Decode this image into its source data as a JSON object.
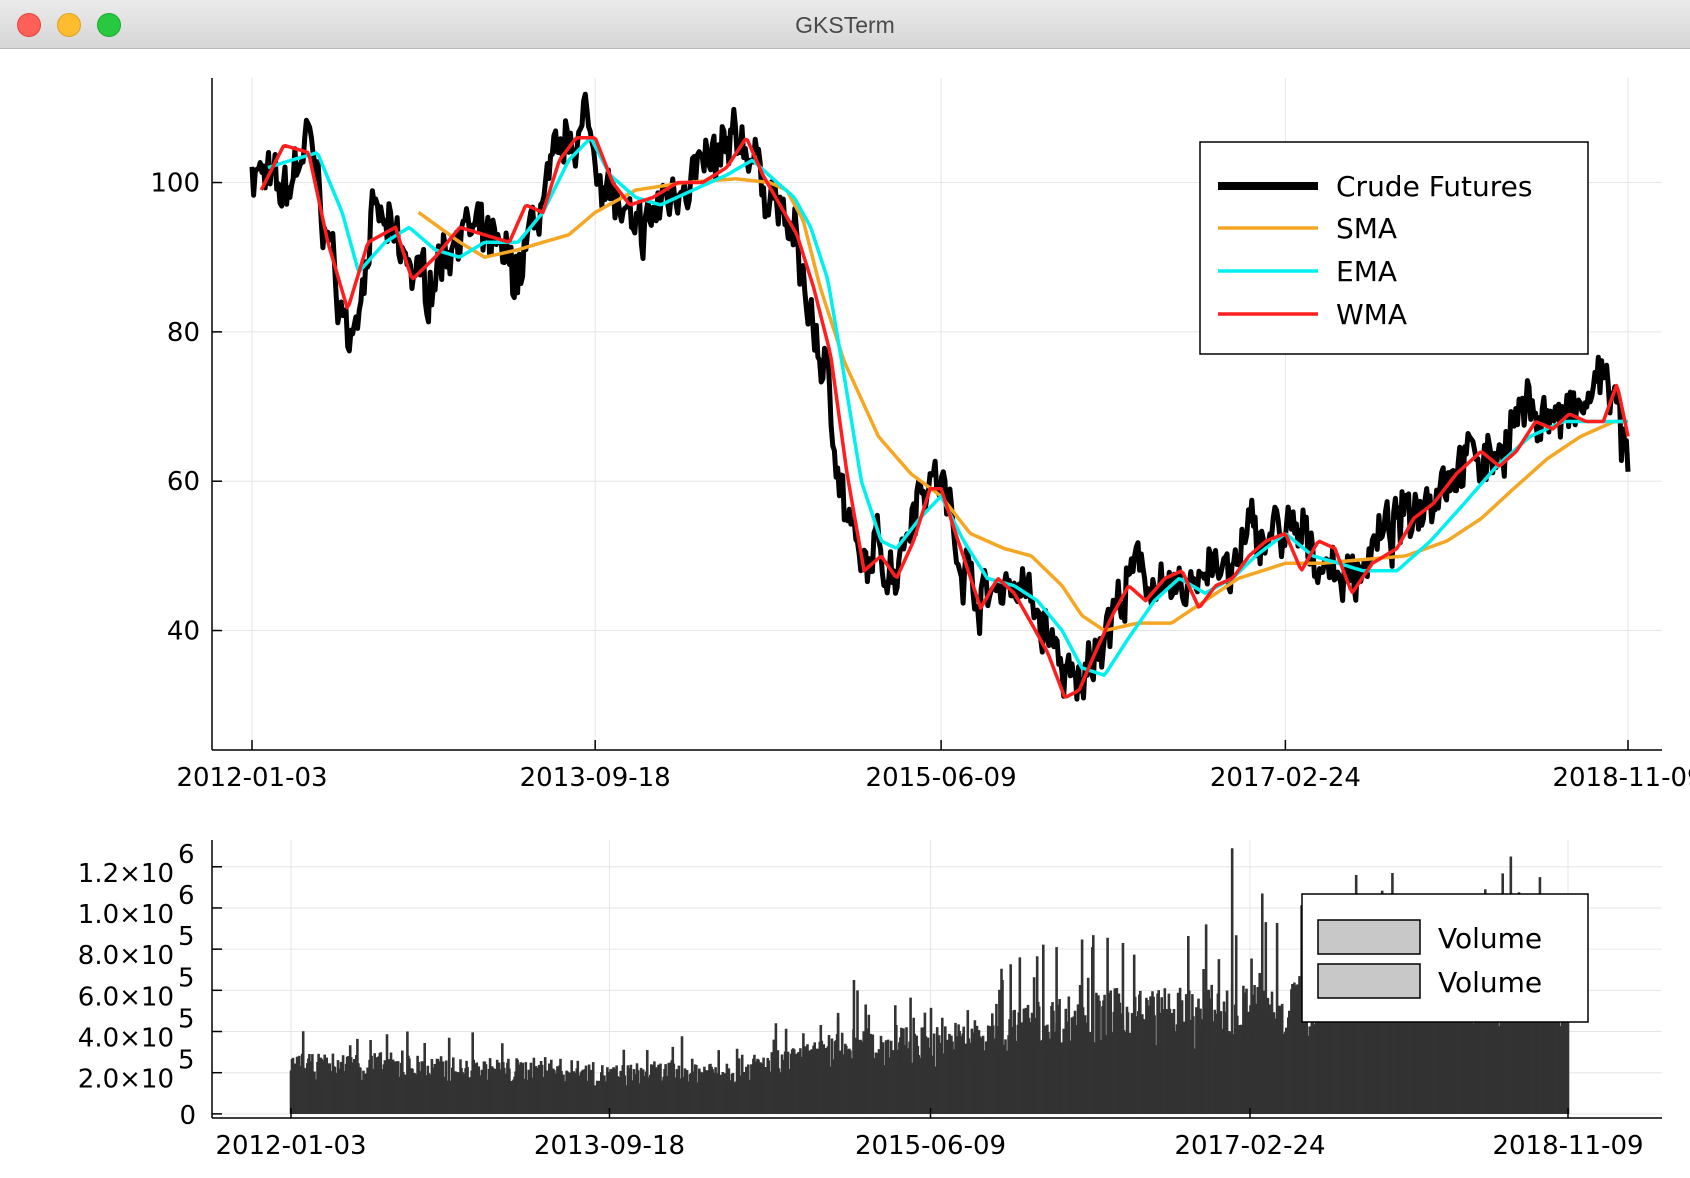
{
  "window": {
    "title": "GKSTerm",
    "controls": {
      "close": "close",
      "minimize": "minimize",
      "zoom": "zoom"
    }
  },
  "colors": {
    "price": "#000000",
    "sma": "#f5a623",
    "ema": "#00f0f0",
    "wma": "#ff1e1e",
    "volume_bar": "#333333",
    "legend_patch": "#c8c8c8",
    "grid": "#e6e6e6"
  },
  "chart_data": [
    {
      "type": "line",
      "grid": true,
      "legend_position": "top-right",
      "x_ticks": [
        "2012-01-03",
        "2013-09-18",
        "2015-06-09",
        "2017-02-24",
        "2018-11-09"
      ],
      "y_ticks": [
        {
          "value": 40,
          "label": "40"
        },
        {
          "value": 60,
          "label": "60"
        },
        {
          "value": 80,
          "label": "80"
        },
        {
          "value": 100,
          "label": "100"
        }
      ],
      "xlim": [
        "2012-01-03",
        "2018-11-09"
      ],
      "ylim": [
        24,
        114
      ],
      "series": [
        {
          "name": "Crude Futures",
          "x": [
            "2012-01-03",
            "2012-03-01",
            "2012-04-15",
            "2012-06-01",
            "2012-06-28",
            "2012-08-15",
            "2012-09-15",
            "2012-11-15",
            "2013-01-10",
            "2013-03-01",
            "2013-05-01",
            "2013-06-15",
            "2013-08-01",
            "2013-09-01",
            "2013-09-18",
            "2013-11-01",
            "2013-12-01",
            "2014-01-15",
            "2014-03-01",
            "2014-04-15",
            "2014-06-15",
            "2014-07-15",
            "2014-08-15",
            "2014-09-15",
            "2014-10-15",
            "2014-11-15",
            "2014-12-15",
            "2015-01-15",
            "2015-02-15",
            "2015-03-15",
            "2015-05-01",
            "2015-06-09",
            "2015-07-15",
            "2015-08-20",
            "2015-10-10",
            "2015-11-20",
            "2016-01-10",
            "2016-02-11",
            "2016-03-15",
            "2016-05-01",
            "2016-06-10",
            "2016-07-20",
            "2016-08-20",
            "2016-10-15",
            "2016-11-15",
            "2016-12-20",
            "2017-02-24",
            "2017-04-15",
            "2017-05-15",
            "2017-06-20",
            "2017-07-20",
            "2017-09-15",
            "2017-11-01",
            "2018-01-15",
            "2018-03-01",
            "2018-05-15",
            "2018-07-15",
            "2018-08-15",
            "2018-10-03",
            "2018-11-09"
          ],
          "values": [
            102,
            98,
            106,
            88,
            78,
            96,
            92,
            86,
            94,
            92,
            88,
            98,
            106,
            108,
            104,
            96,
            92,
            97,
            101,
            102,
            106,
            101,
            97,
            92,
            82,
            73,
            57,
            47,
            51,
            48,
            60,
            60,
            50,
            44,
            47,
            44,
            36,
            31,
            38,
            44,
            49,
            44,
            45,
            50,
            46,
            53,
            53,
            51,
            48,
            47,
            50,
            54,
            58,
            63,
            63,
            70,
            68,
            69,
            75,
            61
          ]
        },
        {
          "name": "SMA",
          "x": [
            "2012-11-01",
            "2013-01-15",
            "2013-03-01",
            "2013-05-01",
            "2013-06-15",
            "2013-08-01",
            "2013-09-18",
            "2013-12-01",
            "2014-03-01",
            "2014-06-01",
            "2014-08-01",
            "2014-09-01",
            "2014-10-01",
            "2014-11-01",
            "2014-12-15",
            "2015-02-15",
            "2015-04-15",
            "2015-06-09",
            "2015-08-01",
            "2015-10-01",
            "2015-11-20",
            "2016-01-15",
            "2016-02-20",
            "2016-04-01",
            "2016-06-01",
            "2016-08-01",
            "2016-10-01",
            "2016-12-01",
            "2017-02-24",
            "2017-05-01",
            "2017-07-15",
            "2017-10-01",
            "2017-12-15",
            "2018-02-15",
            "2018-04-15",
            "2018-06-15",
            "2018-08-15",
            "2018-10-15",
            "2018-11-09"
          ],
          "values": [
            96,
            92,
            90,
            91,
            92,
            93,
            96,
            99,
            100,
            100.5,
            100,
            99,
            95,
            86,
            76,
            66,
            61,
            58,
            53,
            51,
            50,
            46,
            42,
            40,
            41,
            41,
            44,
            47,
            49,
            49,
            49.5,
            50,
            52,
            55,
            59,
            63,
            66,
            68,
            68
          ]
        },
        {
          "name": "EMA",
          "x": [
            "2012-02-01",
            "2012-03-15",
            "2012-05-01",
            "2012-06-15",
            "2012-07-15",
            "2012-09-01",
            "2012-10-15",
            "2012-12-01",
            "2013-01-15",
            "2013-03-01",
            "2013-05-01",
            "2013-06-15",
            "2013-08-01",
            "2013-09-10",
            "2013-10-15",
            "2013-12-01",
            "2014-01-15",
            "2014-03-15",
            "2014-05-15",
            "2014-07-01",
            "2014-08-15",
            "2014-09-15",
            "2014-10-15",
            "2014-11-15",
            "2014-12-15",
            "2015-01-15",
            "2015-02-20",
            "2015-03-20",
            "2015-05-01",
            "2015-06-09",
            "2015-07-20",
            "2015-09-01",
            "2015-10-20",
            "2015-12-01",
            "2016-01-15",
            "2016-02-20",
            "2016-04-01",
            "2016-05-15",
            "2016-07-01",
            "2016-08-15",
            "2016-10-01",
            "2016-11-20",
            "2017-01-01",
            "2017-02-24",
            "2017-04-15",
            "2017-06-01",
            "2017-07-15",
            "2017-09-15",
            "2017-11-15",
            "2018-01-15",
            "2018-03-15",
            "2018-05-15",
            "2018-07-15",
            "2018-09-15",
            "2018-11-09"
          ],
          "values": [
            102,
            103,
            104,
            96,
            88,
            92,
            94,
            91,
            90,
            92,
            92,
            96,
            103,
            106,
            101,
            98,
            97,
            99,
            101,
            103,
            100,
            98,
            94,
            87,
            74,
            60,
            52,
            51,
            55,
            58,
            52,
            47,
            46,
            44,
            40,
            35,
            34,
            39,
            44,
            47,
            45,
            47,
            50,
            53,
            50,
            49,
            48,
            48,
            52,
            57,
            62,
            66,
            68,
            68,
            68
          ]
        },
        {
          "name": "WMA",
          "x": [
            "2012-01-20",
            "2012-03-01",
            "2012-04-15",
            "2012-05-20",
            "2012-06-25",
            "2012-08-01",
            "2012-09-20",
            "2012-10-20",
            "2012-12-01",
            "2013-01-15",
            "2013-03-01",
            "2013-04-15",
            "2013-05-15",
            "2013-06-15",
            "2013-07-15",
            "2013-08-15",
            "2013-09-18",
            "2013-10-20",
            "2013-11-20",
            "2014-01-01",
            "2014-02-15",
            "2014-04-01",
            "2014-05-15",
            "2014-06-20",
            "2014-07-20",
            "2014-08-20",
            "2014-09-20",
            "2014-10-20",
            "2014-11-20",
            "2014-12-20",
            "2015-01-20",
            "2015-02-20",
            "2015-03-20",
            "2015-04-20",
            "2015-05-20",
            "2015-06-09",
            "2015-07-10",
            "2015-08-20",
            "2015-09-20",
            "2015-10-20",
            "2015-11-20",
            "2015-12-20",
            "2016-01-20",
            "2016-02-15",
            "2016-03-15",
            "2016-04-15",
            "2016-05-15",
            "2016-06-15",
            "2016-07-20",
            "2016-08-20",
            "2016-09-20",
            "2016-10-20",
            "2016-11-20",
            "2016-12-20",
            "2017-01-20",
            "2017-02-24",
            "2017-03-25",
            "2017-04-25",
            "2017-05-25",
            "2017-06-25",
            "2017-08-01",
            "2017-09-15",
            "2017-10-15",
            "2017-11-20",
            "2018-01-01",
            "2018-02-15",
            "2018-03-20",
            "2018-04-20",
            "2018-05-25",
            "2018-06-25",
            "2018-07-25",
            "2018-08-25",
            "2018-09-25",
            "2018-10-20",
            "2018-11-09"
          ],
          "values": [
            99,
            105,
            104,
            92,
            83,
            92,
            94,
            87,
            90,
            94,
            93,
            92,
            97,
            96,
            103,
            106,
            106,
            100,
            97,
            98,
            100,
            100,
            102,
            106,
            101,
            97,
            93,
            86,
            77,
            61,
            48,
            50,
            47,
            52,
            59,
            59,
            52,
            43,
            47,
            45,
            41,
            37,
            31,
            32,
            37,
            42,
            46,
            44,
            47,
            48,
            43,
            46,
            47,
            50,
            52,
            53,
            48,
            52,
            51,
            45,
            49,
            51,
            55,
            57,
            61,
            64,
            62,
            64,
            68,
            67,
            69,
            68,
            68,
            73,
            66
          ]
        }
      ]
    },
    {
      "type": "bar",
      "grid": true,
      "legend_position": "top-right",
      "x_ticks": [
        "2012-01-03",
        "2013-09-18",
        "2015-06-09",
        "2017-02-24",
        "2018-11-09"
      ],
      "y_ticks": [
        {
          "value": 0,
          "mantissa": "0",
          "exponent": ""
        },
        {
          "value": 200000,
          "mantissa": "2.0×10",
          "exponent": "5"
        },
        {
          "value": 400000,
          "mantissa": "4.0×10",
          "exponent": "5"
        },
        {
          "value": 600000,
          "mantissa": "6.0×10",
          "exponent": "5"
        },
        {
          "value": 800000,
          "mantissa": "8.0×10",
          "exponent": "5"
        },
        {
          "value": 1000000,
          "mantissa": "1.0×10",
          "exponent": "6"
        },
        {
          "value": 1200000,
          "mantissa": "1.2×10",
          "exponent": "6"
        }
      ],
      "ylim": [
        -20000,
        1330000
      ],
      "legend_entries": [
        "Volume",
        "Volume"
      ],
      "volume_envelope": {
        "x": [
          "2012-01-03",
          "2012-06-01",
          "2012-12-01",
          "2013-06-01",
          "2013-09-18",
          "2013-12-01",
          "2014-06-01",
          "2014-10-01",
          "2015-01-01",
          "2015-06-09",
          "2015-10-01",
          "2016-01-15",
          "2016-06-01",
          "2016-10-01",
          "2017-02-24",
          "2017-06-01",
          "2017-10-01",
          "2018-02-01",
          "2018-06-01",
          "2018-11-09"
        ],
        "values": [
          260000,
          280000,
          250000,
          250000,
          220000,
          230000,
          260000,
          300000,
          380000,
          390000,
          440000,
          520000,
          560000,
          560000,
          580000,
          640000,
          680000,
          720000,
          740000,
          740000
        ]
      },
      "volume_spikes": [
        {
          "x": "2013-12-01",
          "value": 310000
        },
        {
          "x": "2014-12-10",
          "value": 470000
        },
        {
          "x": "2015-01-10",
          "value": 650000
        },
        {
          "x": "2015-12-01",
          "value": 760000
        },
        {
          "x": "2016-02-11",
          "value": 810000
        },
        {
          "x": "2016-06-20",
          "value": 830000
        },
        {
          "x": "2016-11-30",
          "value": 920000
        },
        {
          "x": "2017-01-20",
          "value": 1290000
        },
        {
          "x": "2017-03-20",
          "value": 1070000
        },
        {
          "x": "2017-09-20",
          "value": 1160000
        },
        {
          "x": "2017-11-30",
          "value": 1170000
        },
        {
          "x": "2018-07-20",
          "value": 1250000
        },
        {
          "x": "2018-09-15",
          "value": 1150000
        }
      ]
    }
  ]
}
